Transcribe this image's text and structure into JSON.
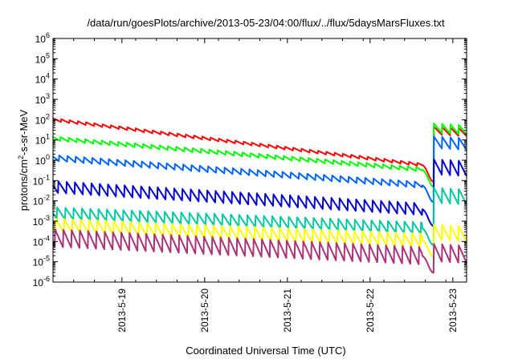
{
  "chart_data": {
    "type": "line",
    "title": "/data/run/goesPlots/archive/2013-05-23/04:00/flux/../flux/5daysMarsFluxes.txt",
    "xlabel": "Coordinated Universal Time (UTC)",
    "ylabel_main": "protons/cm",
    "ylabel_sup": "2",
    "ylabel_tail": "-s-sr-MeV",
    "y_scale": "log",
    "ylim": [
      1e-06,
      1000000.0
    ],
    "y_ticks": [
      {
        "base": "10",
        "exp": "-6"
      },
      {
        "base": "10",
        "exp": "-5"
      },
      {
        "base": "10",
        "exp": "-4"
      },
      {
        "base": "10",
        "exp": "-3"
      },
      {
        "base": "10",
        "exp": "-2"
      },
      {
        "base": "10",
        "exp": "-1"
      },
      {
        "base": "10",
        "exp": "0"
      },
      {
        "base": "10",
        "exp": "1"
      },
      {
        "base": "10",
        "exp": "2"
      },
      {
        "base": "10",
        "exp": "3"
      },
      {
        "base": "10",
        "exp": "4"
      },
      {
        "base": "10",
        "exp": "5"
      },
      {
        "base": "10",
        "exp": "6"
      }
    ],
    "xlim": [
      "2013-05-18 04:00",
      "2013-05-23 04:00"
    ],
    "x_ticks": [
      "2013-5-19",
      "2013-5-20",
      "2013-5-21",
      "2013-5-22",
      "2013-5-23"
    ],
    "grid": false,
    "legend": "none",
    "drop_start_day": 4.46,
    "recover_day": 4.6,
    "series": [
      {
        "color": "#ff0000",
        "start": 100,
        "before_drop": 0.6,
        "end": 30,
        "sawtooth": 1.4,
        "post_spike": 2.5,
        "tooth_days": 0.1
      },
      {
        "color": "#00ff00",
        "start": 12,
        "before_drop": 0.35,
        "end": 40,
        "sawtooth": 1.6,
        "post_spike": 3,
        "tooth_days": 0.1
      },
      {
        "color": "#0064ff",
        "start": 1.3,
        "before_drop": 0.06,
        "end": 8,
        "sawtooth": 2,
        "post_spike": 4,
        "tooth_days": 0.1
      },
      {
        "color": "#0000cc",
        "start": 0.05,
        "before_drop": 0.004,
        "end": 0.5,
        "sawtooth": 4,
        "post_spike": 6,
        "tooth_days": 0.1
      },
      {
        "color": "#00c8a0",
        "start": 0.0025,
        "before_drop": 0.00045,
        "end": 0.02,
        "sawtooth": 4,
        "post_spike": 6,
        "tooth_days": 0.1
      },
      {
        "color": "#ffff00",
        "start": 0.0006,
        "before_drop": 0.00012,
        "end": 0.0003,
        "sawtooth": 5,
        "post_spike": 6,
        "tooth_days": 0.1
      },
      {
        "color": "#aa3377",
        "start": 0.00015,
        "before_drop": 2e-05,
        "end": 3e-05,
        "sawtooth": 8,
        "post_spike": 8,
        "tooth_days": 0.1
      }
    ]
  }
}
